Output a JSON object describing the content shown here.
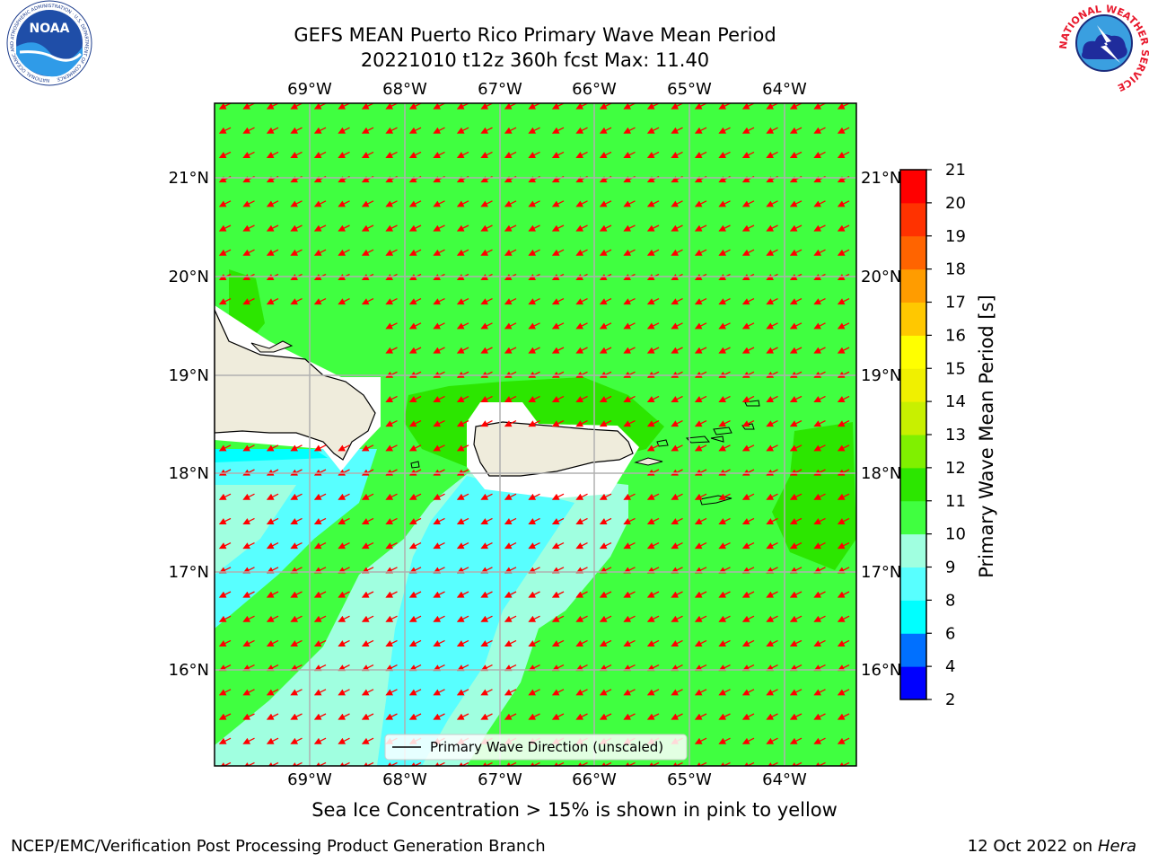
{
  "title": {
    "line1": "GEFS MEAN Puerto Rico Primary Wave Mean Period",
    "line2": "20221010 t12z 360h fcst   Max: 11.40"
  },
  "map": {
    "lon_labels": [
      "69°W",
      "68°W",
      "67°W",
      "66°W",
      "65°W",
      "64°W"
    ],
    "lat_labels": [
      "21°N",
      "20°N",
      "19°N",
      "18°N",
      "17°N",
      "16°N"
    ],
    "legend_label": "Primary Wave Direction (unscaled)"
  },
  "colorbar": {
    "label": "Primary Wave Mean Period [s]",
    "ticks": [
      "2",
      "4",
      "6",
      "8",
      "9",
      "10",
      "11",
      "12",
      "13",
      "14",
      "15",
      "16",
      "17",
      "18",
      "19",
      "20",
      "21"
    ],
    "colors": [
      "#0000ff",
      "#0070ff",
      "#00ffff",
      "#58ffff",
      "#a0ffe0",
      "#40ff40",
      "#2ce600",
      "#80f000",
      "#c8f000",
      "#f0f000",
      "#ffff00",
      "#ffc800",
      "#ff9c00",
      "#ff6400",
      "#ff3200",
      "#ff0000"
    ]
  },
  "subtitle": "Sea Ice Concentration > 15% is shown in pink to yellow",
  "footer": {
    "left": "NCEP/EMC/Verification Post Processing Product Generation Branch",
    "right_prefix": "12 Oct 2022 on ",
    "right_machine": "Hera"
  },
  "logos": {
    "noaa": "NOAA",
    "noaa_ring": "NATIONAL OCEANIC AND ATMOSPHERIC ADMINISTRATION · U.S. DEPARTMENT OF COMMERCE",
    "nws_ring": "NATIONAL WEATHER SERVICE"
  }
}
